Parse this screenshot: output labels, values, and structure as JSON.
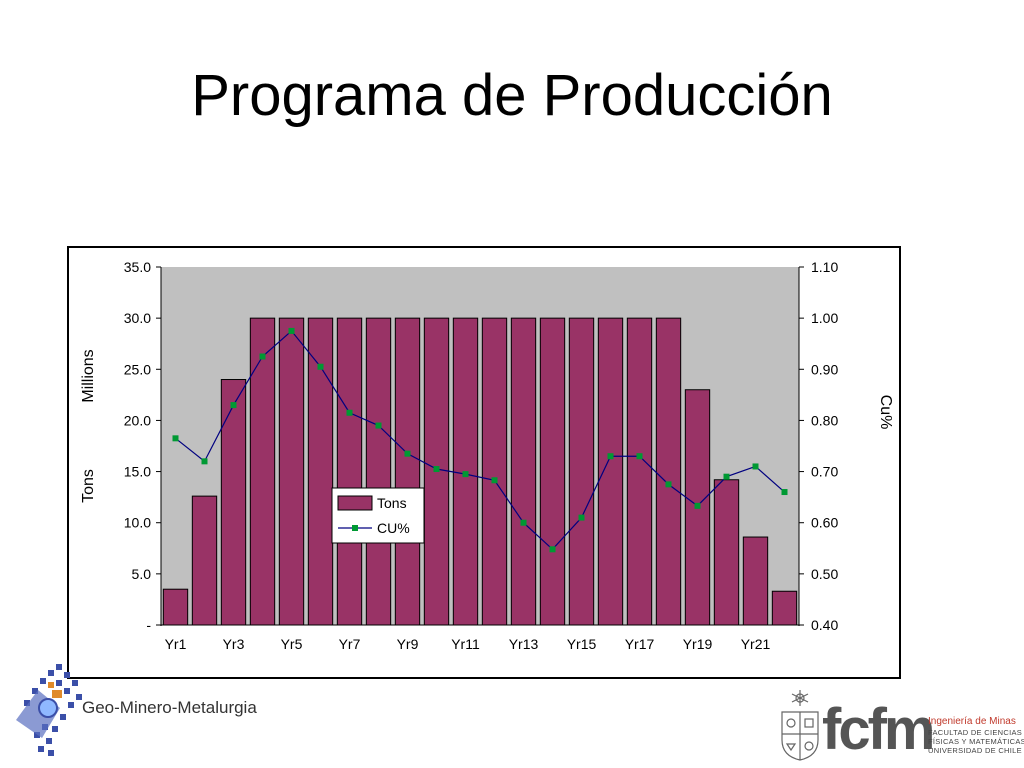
{
  "title": "Programa de Producción",
  "chart_data": {
    "type": "bar",
    "categories": [
      "Yr1",
      "Yr2",
      "Yr3",
      "Yr4",
      "Yr5",
      "Yr6",
      "Yr7",
      "Yr8",
      "Yr9",
      "Yr10",
      "Yr11",
      "Yr12",
      "Yr13",
      "Yr14",
      "Yr15",
      "Yr16",
      "Yr17",
      "Yr18",
      "Yr19",
      "Yr20",
      "Yr21",
      "Yr22"
    ],
    "tick_labels": [
      "Yr1",
      "",
      "Yr3",
      "",
      "Yr5",
      "",
      "Yr7",
      "",
      "Yr9",
      "",
      "Yr11",
      "",
      "Yr13",
      "",
      "Yr15",
      "",
      "Yr17",
      "",
      "Yr19",
      "",
      "Yr21",
      ""
    ],
    "series": [
      {
        "name": "Tons",
        "type": "bar",
        "axis": "left",
        "color": "#993366",
        "values": [
          3.5,
          12.6,
          24.0,
          30.0,
          30.0,
          30.0,
          30.0,
          30.0,
          30.0,
          30.0,
          30.0,
          30.0,
          30.0,
          30.0,
          30.0,
          30.0,
          30.0,
          30.0,
          23.0,
          14.2,
          8.6,
          3.3
        ]
      },
      {
        "name": "CU%",
        "type": "line",
        "axis": "right",
        "color": "#000080",
        "marker_color": "#009933",
        "values": [
          0.765,
          0.72,
          0.83,
          0.925,
          0.975,
          0.905,
          0.815,
          0.79,
          0.735,
          0.705,
          0.695,
          0.683,
          0.6,
          0.548,
          0.61,
          0.73,
          0.73,
          0.675,
          0.633,
          0.69,
          0.71,
          0.66
        ]
      }
    ],
    "y_left": {
      "label_line1": "Tons",
      "label_line2": "Millions",
      "ylim": [
        0,
        35
      ],
      "ticks": [
        "-",
        "5.0",
        "10.0",
        "15.0",
        "20.0",
        "25.0",
        "30.0",
        "35.0"
      ]
    },
    "y_right": {
      "label": "Cu%",
      "ylim": [
        0.4,
        1.1
      ],
      "ticks": [
        "0.40",
        "0.50",
        "0.60",
        "0.70",
        "0.80",
        "0.90",
        "1.00",
        "1.10"
      ]
    },
    "legend": {
      "placement": "center-left",
      "entries": [
        "Tons",
        "CU%"
      ]
    },
    "plot_background": "#c0c0c0",
    "grid": false
  },
  "logos": {
    "left_text": "Geo-Minero-Metalurgia",
    "right_brand": "fcfm",
    "right_lines": [
      "Ingeniería de Minas",
      "FACULTAD DE CIENCIAS",
      "FÍSICAS Y MATEMÁTICAS",
      "UNIVERSIDAD DE CHILE"
    ]
  }
}
